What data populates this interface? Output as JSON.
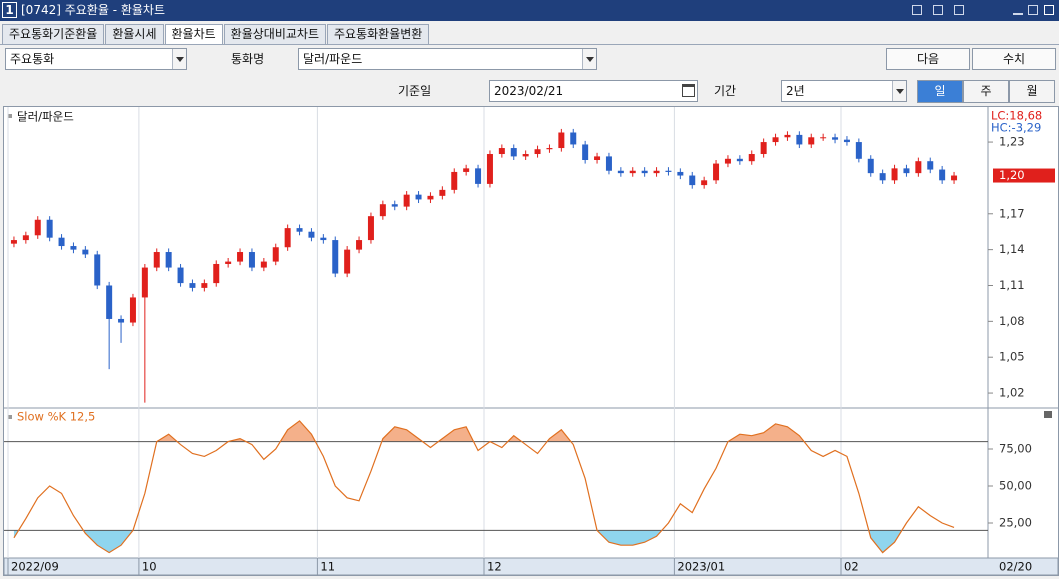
{
  "ui": {
    "window_number": "1",
    "window_title": "[0742] 주요환율 - 환율차트",
    "tabs": [
      "주요통화기준환율",
      "환율시세",
      "환율차트",
      "환율상대비교차트",
      "주요통화환율변환"
    ],
    "active_tab": 2,
    "category_select": "주요통화",
    "currency_label": "통화명",
    "currency_select": "달러/파운드",
    "next_button": "다음",
    "values_button": "수치",
    "date_label": "기준일",
    "date_value": "2023/02/21",
    "period_label": "기간",
    "period_select": "2년",
    "interval_buttons": [
      "일",
      "주",
      "월"
    ],
    "active_interval": 0
  },
  "chart_data": {
    "type": "candlestick",
    "title": "달러/파운드",
    "categories": [
      "2022/09",
      null,
      null,
      null,
      null,
      null,
      null,
      null,
      null,
      null,
      null,
      "10",
      null,
      null,
      null,
      null,
      null,
      null,
      null,
      null,
      null,
      null,
      null,
      null,
      null,
      null,
      "11",
      null,
      null,
      null,
      null,
      null,
      null,
      null,
      null,
      null,
      null,
      null,
      null,
      null,
      "12",
      null,
      null,
      null,
      null,
      null,
      null,
      null,
      null,
      null,
      null,
      null,
      null,
      null,
      null,
      null,
      "2023/01",
      null,
      null,
      null,
      null,
      null,
      null,
      null,
      null,
      null,
      null,
      null,
      null,
      null,
      "02",
      null,
      null,
      null,
      null,
      null,
      null,
      null,
      null,
      null
    ],
    "open": [
      1.145,
      1.148,
      1.152,
      1.165,
      1.15,
      1.143,
      1.14,
      1.136,
      1.11,
      1.082,
      1.079,
      1.1,
      1.125,
      1.138,
      1.125,
      1.112,
      1.108,
      1.112,
      1.128,
      1.13,
      1.138,
      1.125,
      1.13,
      1.142,
      1.158,
      1.155,
      1.15,
      1.148,
      1.12,
      1.14,
      1.148,
      1.168,
      1.178,
      1.176,
      1.186,
      1.182,
      1.185,
      1.19,
      1.205,
      1.208,
      1.195,
      1.22,
      1.225,
      1.218,
      1.22,
      1.224,
      1.225,
      1.238,
      1.228,
      1.215,
      1.218,
      1.206,
      1.204,
      1.206,
      1.204,
      1.206,
      1.205,
      1.202,
      1.194,
      1.198,
      1.212,
      1.216,
      1.214,
      1.22,
      1.23,
      1.234,
      1.236,
      1.228,
      1.234,
      1.234,
      1.232,
      1.23,
      1.216,
      1.204,
      1.198,
      1.208,
      1.204,
      1.214,
      1.207,
      1.198
    ],
    "high": [
      1.151,
      1.155,
      1.168,
      1.168,
      1.153,
      1.146,
      1.143,
      1.139,
      1.113,
      1.085,
      1.103,
      1.128,
      1.141,
      1.141,
      1.128,
      1.115,
      1.115,
      1.131,
      1.133,
      1.141,
      1.141,
      1.133,
      1.145,
      1.161,
      1.161,
      1.158,
      1.153,
      1.151,
      1.143,
      1.151,
      1.171,
      1.181,
      1.181,
      1.189,
      1.189,
      1.188,
      1.193,
      1.208,
      1.211,
      1.211,
      1.223,
      1.228,
      1.228,
      1.223,
      1.227,
      1.228,
      1.241,
      1.241,
      1.231,
      1.221,
      1.221,
      1.209,
      1.209,
      1.209,
      1.209,
      1.209,
      1.208,
      1.205,
      1.201,
      1.215,
      1.219,
      1.219,
      1.223,
      1.233,
      1.237,
      1.239,
      1.239,
      1.237,
      1.237,
      1.237,
      1.235,
      1.233,
      1.219,
      1.207,
      1.211,
      1.211,
      1.217,
      1.217,
      1.21,
      1.205
    ],
    "low": [
      1.142,
      1.145,
      1.149,
      1.147,
      1.14,
      1.137,
      1.133,
      1.107,
      1.04,
      1.062,
      1.076,
      1.012,
      1.122,
      1.122,
      1.109,
      1.105,
      1.105,
      1.109,
      1.125,
      1.127,
      1.122,
      1.122,
      1.127,
      1.139,
      1.152,
      1.147,
      1.145,
      1.117,
      1.117,
      1.137,
      1.145,
      1.165,
      1.173,
      1.173,
      1.179,
      1.179,
      1.182,
      1.187,
      1.202,
      1.192,
      1.192,
      1.217,
      1.215,
      1.215,
      1.217,
      1.221,
      1.222,
      1.225,
      1.212,
      1.212,
      1.203,
      1.201,
      1.201,
      1.201,
      1.201,
      1.202,
      1.199,
      1.191,
      1.191,
      1.195,
      1.209,
      1.211,
      1.211,
      1.217,
      1.227,
      1.231,
      1.225,
      1.225,
      1.231,
      1.229,
      1.227,
      1.213,
      1.201,
      1.195,
      1.195,
      1.201,
      1.201,
      1.204,
      1.195,
      1.195
    ],
    "close": [
      1.148,
      1.152,
      1.165,
      1.15,
      1.143,
      1.14,
      1.136,
      1.11,
      1.082,
      1.079,
      1.1,
      1.125,
      1.138,
      1.125,
      1.112,
      1.108,
      1.112,
      1.128,
      1.13,
      1.138,
      1.125,
      1.13,
      1.142,
      1.158,
      1.155,
      1.15,
      1.148,
      1.12,
      1.14,
      1.148,
      1.168,
      1.178,
      1.176,
      1.186,
      1.182,
      1.185,
      1.19,
      1.205,
      1.208,
      1.195,
      1.22,
      1.225,
      1.218,
      1.22,
      1.224,
      1.225,
      1.238,
      1.228,
      1.215,
      1.218,
      1.206,
      1.204,
      1.206,
      1.204,
      1.206,
      1.205,
      1.202,
      1.194,
      1.198,
      1.212,
      1.216,
      1.214,
      1.22,
      1.23,
      1.234,
      1.236,
      1.228,
      1.234,
      1.234,
      1.232,
      1.23,
      1.216,
      1.204,
      1.198,
      1.208,
      1.204,
      1.214,
      1.207,
      1.198,
      1.202
    ],
    "up_color": "#e0201c",
    "down_color": "#2a62c8",
    "ylim": [
      1.0075,
      1.2585
    ],
    "yticks": [
      {
        "value": 1.02,
        "label": "1,02"
      },
      {
        "value": 1.05,
        "label": "1,05"
      },
      {
        "value": 1.08,
        "label": "1,08"
      },
      {
        "value": 1.11,
        "label": "1,11"
      },
      {
        "value": 1.14,
        "label": "1,14"
      },
      {
        "value": 1.17,
        "label": "1,17"
      },
      {
        "value": 1.23,
        "label": "1,23"
      }
    ],
    "current_price": {
      "value": 1.202,
      "label": "1,20"
    },
    "lc_label": "LC:18,68",
    "hc_label": "HC:-3,29",
    "last_date_label": "02/20",
    "grid": true,
    "indicator": {
      "type": "line",
      "title": "Slow %K 12,5",
      "color": "#e07020",
      "values": [
        15,
        28,
        42,
        50,
        45,
        30,
        18,
        10,
        5,
        10,
        20,
        45,
        80,
        85,
        78,
        72,
        70,
        74,
        80,
        82,
        78,
        68,
        75,
        88,
        94,
        85,
        70,
        50,
        42,
        40,
        60,
        82,
        90,
        88,
        82,
        76,
        82,
        88,
        90,
        74,
        80,
        76,
        84,
        78,
        72,
        82,
        88,
        78,
        55,
        20,
        12,
        10,
        10,
        12,
        16,
        25,
        38,
        32,
        48,
        62,
        80,
        85,
        84,
        86,
        92,
        90,
        84,
        74,
        70,
        74,
        70,
        45,
        15,
        5,
        12,
        25,
        36,
        30,
        25,
        22
      ],
      "ylim": [
        0,
        100
      ],
      "yticks": [
        {
          "value": 25,
          "label": "25,00"
        },
        {
          "value": 50,
          "label": "50,00"
        },
        {
          "value": 75,
          "label": "75,00"
        }
      ],
      "levels": [
        80,
        20
      ],
      "overbought_color": "#f4b08a",
      "oversold_color": "#8fd5ee"
    }
  }
}
